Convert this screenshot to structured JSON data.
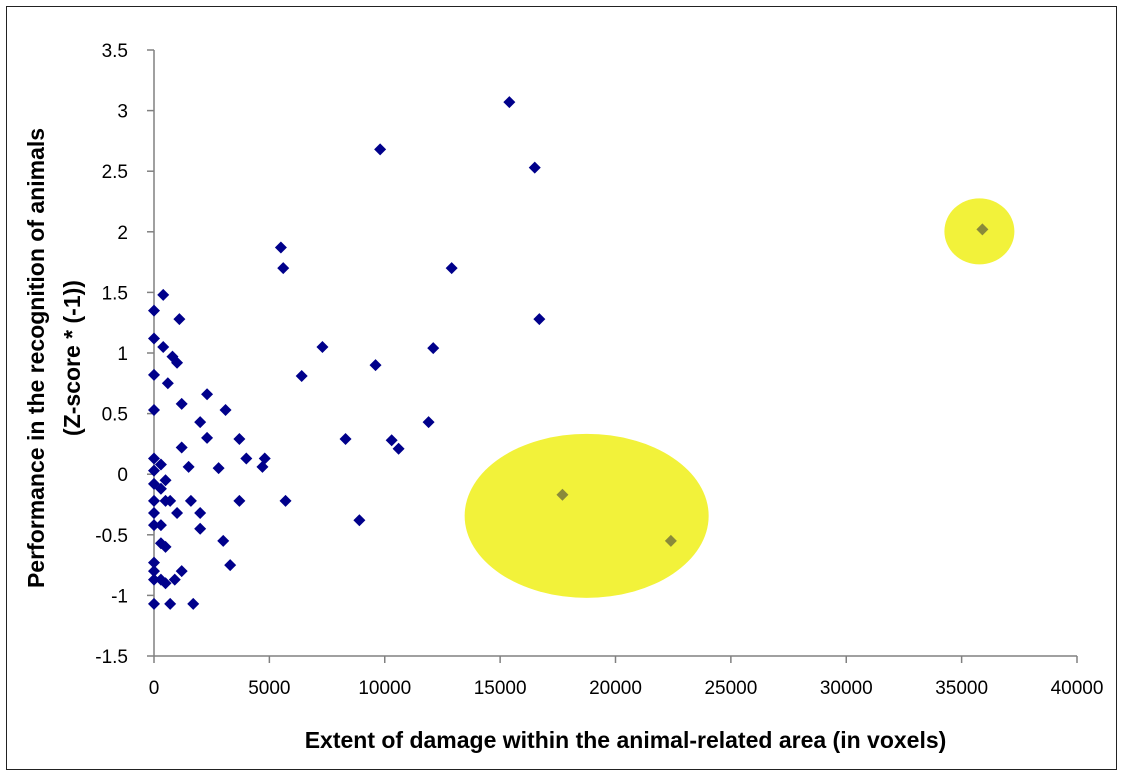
{
  "chart_data": {
    "type": "scatter",
    "title": "",
    "xlabel": "Extent of damage within the animal-related area (in voxels)",
    "ylabel_lines": [
      "Performance in the recognition of animals",
      "(Z-score * (-1))"
    ],
    "xlim": [
      0,
      40000
    ],
    "ylim": [
      -1.5,
      3.5
    ],
    "xticks": [
      0,
      5000,
      10000,
      15000,
      20000,
      25000,
      30000,
      35000,
      40000
    ],
    "yticks": [
      -1.5,
      -1,
      -0.5,
      0,
      0.5,
      1,
      1.5,
      2,
      2.5,
      3,
      3.5
    ],
    "grid": false,
    "legend": "none",
    "colors": {
      "points": "#00008B",
      "highlighted_points": "#8A8A3A",
      "highlight": "#F2F23A"
    },
    "series": [
      {
        "marker": "diamond",
        "points": [
          [
            400,
            1.48
          ],
          [
            0,
            1.35
          ],
          [
            0,
            1.12
          ],
          [
            400,
            1.05
          ],
          [
            0,
            0.82
          ],
          [
            0,
            0.53
          ],
          [
            0,
            0.13
          ],
          [
            0,
            0.03
          ],
          [
            0,
            -0.08
          ],
          [
            0,
            -0.22
          ],
          [
            0,
            -0.32
          ],
          [
            0,
            -0.42
          ],
          [
            0,
            -0.73
          ],
          [
            0,
            -0.8
          ],
          [
            0,
            -0.87
          ],
          [
            0,
            -1.07
          ],
          [
            300,
            0.08
          ],
          [
            300,
            -0.12
          ],
          [
            300,
            -0.42
          ],
          [
            300,
            -0.57
          ],
          [
            300,
            -0.87
          ],
          [
            500,
            -0.05
          ],
          [
            500,
            -0.22
          ],
          [
            500,
            -0.6
          ],
          [
            500,
            -0.9
          ],
          [
            600,
            0.75
          ],
          [
            700,
            -0.22
          ],
          [
            700,
            -1.07
          ],
          [
            800,
            0.97
          ],
          [
            900,
            -0.87
          ],
          [
            1000,
            0.92
          ],
          [
            1000,
            -0.32
          ],
          [
            1100,
            1.28
          ],
          [
            1200,
            0.22
          ],
          [
            1200,
            0.58
          ],
          [
            1200,
            -0.8
          ],
          [
            1500,
            0.06
          ],
          [
            1600,
            -0.22
          ],
          [
            1700,
            -1.07
          ],
          [
            2000,
            0.43
          ],
          [
            2000,
            -0.32
          ],
          [
            2000,
            -0.45
          ],
          [
            2300,
            0.3
          ],
          [
            2300,
            0.66
          ],
          [
            2800,
            0.05
          ],
          [
            3000,
            -0.55
          ],
          [
            3100,
            0.53
          ],
          [
            3300,
            -0.75
          ],
          [
            3700,
            0.29
          ],
          [
            3700,
            -0.22
          ],
          [
            4000,
            0.13
          ],
          [
            4700,
            0.06
          ],
          [
            4800,
            0.13
          ],
          [
            5500,
            1.87
          ],
          [
            5600,
            1.7
          ],
          [
            5700,
            -0.22
          ],
          [
            6400,
            0.81
          ],
          [
            7300,
            1.05
          ],
          [
            8300,
            0.29
          ],
          [
            8900,
            -0.38
          ],
          [
            9600,
            0.9
          ],
          [
            9800,
            2.68
          ],
          [
            10300,
            0.28
          ],
          [
            10600,
            0.21
          ],
          [
            11900,
            0.43
          ],
          [
            12100,
            1.04
          ],
          [
            12900,
            1.7
          ],
          [
            15400,
            3.07
          ],
          [
            16500,
            2.53
          ],
          [
            16700,
            1.28
          ]
        ]
      },
      {
        "marker": "diamond",
        "highlighted": true,
        "points": [
          [
            17700,
            -0.17
          ],
          [
            22400,
            -0.55
          ],
          [
            35900,
            2.02
          ]
        ]
      }
    ]
  }
}
